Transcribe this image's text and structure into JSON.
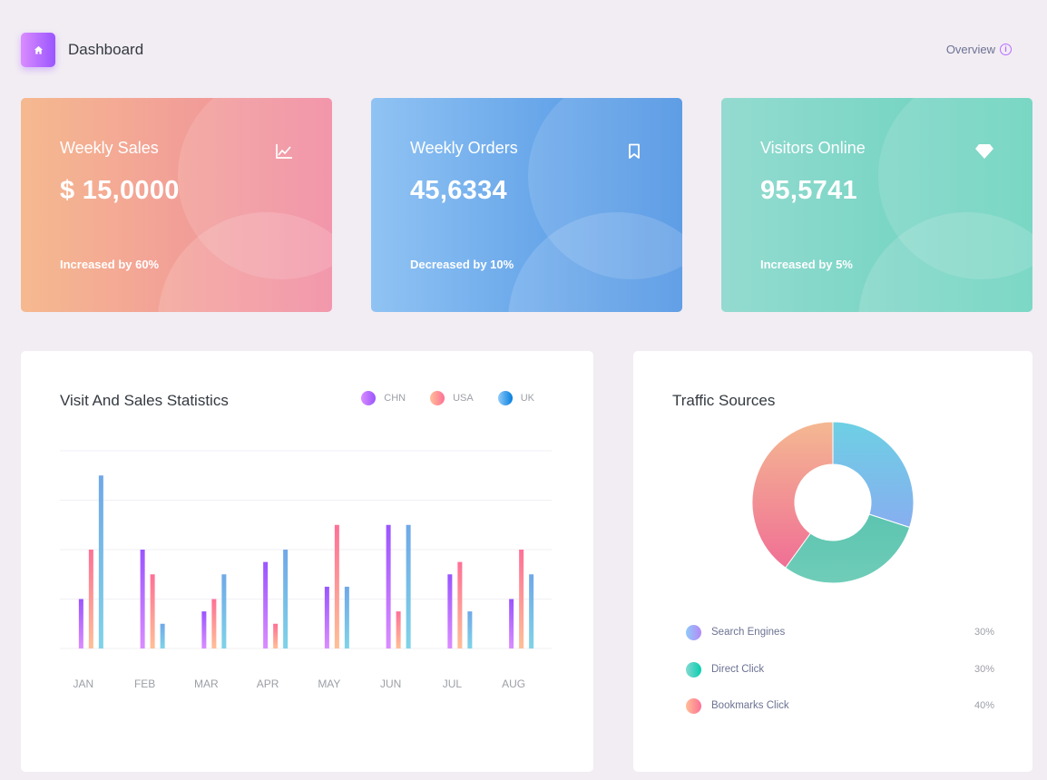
{
  "header": {
    "title": "Dashboard",
    "overview_label": "Overview",
    "home_icon": "home-icon",
    "info_icon": "info-icon"
  },
  "cards": [
    {
      "label": "Weekly Sales",
      "value": "$ 15,0000",
      "sub": "Increased by 60%",
      "icon": "chart-line-icon"
    },
    {
      "label": "Weekly Orders",
      "value": "45,6334",
      "sub": "Decreased by 10%",
      "icon": "bookmark-icon"
    },
    {
      "label": "Visitors Online",
      "value": "95,5741",
      "sub": "Increased by 5%",
      "icon": "diamond-icon"
    }
  ],
  "visit_stats": {
    "title": "Visit And Sales Statistics",
    "legend": [
      "CHN",
      "USA",
      "UK"
    ]
  },
  "traffic": {
    "title": "Traffic Sources",
    "items": [
      {
        "label": "Search Engines",
        "percent": "30%"
      },
      {
        "label": "Direct Click",
        "percent": "30%"
      },
      {
        "label": "Bookmarks Click",
        "percent": "40%"
      }
    ]
  },
  "chart_data": [
    {
      "type": "bar",
      "title": "Visit And Sales Statistics",
      "categories": [
        "JAN",
        "FEB",
        "MAR",
        "APR",
        "MAY",
        "JUN",
        "JUL",
        "AUG"
      ],
      "series": [
        {
          "name": "CHN",
          "values": [
            20,
            40,
            15,
            35,
            25,
            50,
            30,
            20
          ]
        },
        {
          "name": "USA",
          "values": [
            40,
            30,
            20,
            10,
            50,
            15,
            35,
            40
          ]
        },
        {
          "name": "UK",
          "values": [
            70,
            10,
            30,
            40,
            25,
            50,
            15,
            30
          ]
        }
      ],
      "ylim": [
        0,
        80
      ],
      "grid": true,
      "legend": "top-right",
      "colors": [
        "#9a55ff",
        "#fe7096",
        "#4fb8e8"
      ]
    },
    {
      "type": "pie",
      "title": "Traffic Sources",
      "labels": [
        "Search Engines",
        "Direct Click",
        "Bookmarks Click"
      ],
      "values": [
        30,
        30,
        40
      ],
      "colors": [
        "#7fb3f0",
        "#5cc4b0",
        "#f07a98"
      ]
    }
  ]
}
